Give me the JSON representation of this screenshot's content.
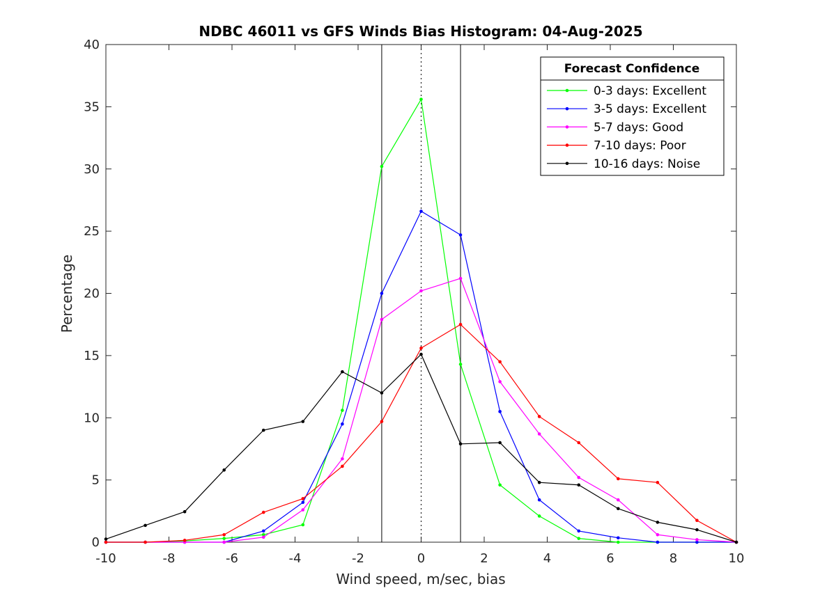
{
  "chart_data": {
    "type": "line",
    "title": "NDBC 46011 vs GFS Winds Bias Histogram: 04-Aug-2025",
    "xlabel": "Wind speed, m/sec, bias",
    "ylabel": "Percentage",
    "xlim": [
      -10,
      10
    ],
    "ylim": [
      0,
      40
    ],
    "xticks": [
      -10,
      -8,
      -6,
      -4,
      -2,
      0,
      2,
      4,
      6,
      8,
      10
    ],
    "yticks": [
      0,
      5,
      10,
      15,
      20,
      25,
      30,
      35,
      40
    ],
    "grid": false,
    "x": [
      -10,
      -8.75,
      -7.5,
      -6.25,
      -5,
      -3.75,
      -2.5,
      -1.25,
      0,
      1.25,
      2.5,
      3.75,
      5,
      6.25,
      7.5,
      8.75,
      10
    ],
    "series": [
      {
        "name": "0-3 days: Excellent",
        "color": "#00ff00",
        "values": [
          0,
          0,
          0.1,
          0.3,
          0.6,
          1.4,
          10.6,
          30.2,
          35.6,
          14.3,
          4.6,
          2.1,
          0.3,
          0,
          0,
          0,
          0
        ]
      },
      {
        "name": "3-5 days: Excellent",
        "color": "#0000ff",
        "values": [
          0,
          0,
          0,
          0,
          0.9,
          3.2,
          9.5,
          20.0,
          26.6,
          24.7,
          10.5,
          3.4,
          0.9,
          0.35,
          0,
          0,
          0
        ]
      },
      {
        "name": "5-7 days: Good",
        "color": "#ff00ff",
        "values": [
          0,
          0,
          0,
          0,
          0.4,
          2.6,
          6.7,
          17.9,
          20.2,
          21.2,
          12.9,
          8.7,
          5.2,
          3.4,
          0.6,
          0.2,
          0
        ]
      },
      {
        "name": "7-10 days: Poor",
        "color": "#ff0000",
        "values": [
          0,
          0,
          0.15,
          0.6,
          2.4,
          3.5,
          6.1,
          9.7,
          15.6,
          17.5,
          14.5,
          10.1,
          8.0,
          5.1,
          4.8,
          1.75,
          0
        ]
      },
      {
        "name": "10-16 days: Noise",
        "color": "#000000",
        "values": [
          0.25,
          1.35,
          2.45,
          5.8,
          9.0,
          9.7,
          13.7,
          12.0,
          15.1,
          7.9,
          8.0,
          4.8,
          4.6,
          2.7,
          1.6,
          1.0,
          0
        ]
      }
    ],
    "vertical_lines": [
      {
        "x": -1.25,
        "style": "solid"
      },
      {
        "x": 0,
        "style": "dotted"
      },
      {
        "x": 1.25,
        "style": "solid"
      }
    ],
    "legend": {
      "title": "Forecast Confidence",
      "placement": "top-right"
    }
  }
}
